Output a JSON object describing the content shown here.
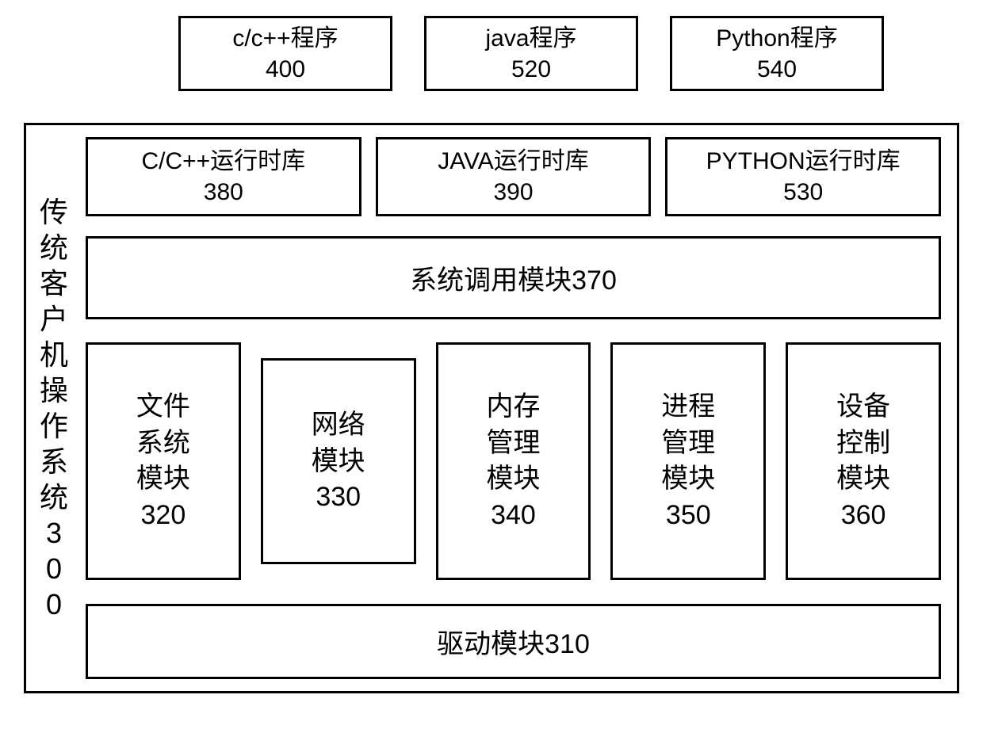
{
  "diagram": {
    "type": "architecture-block-diagram",
    "colors": {
      "border": "#000000",
      "background": "#ffffff",
      "text": "#000000"
    },
    "typography": {
      "font_family": "SimSun / monospace-like CJK",
      "top_box_fontsize": 30,
      "runtime_box_fontsize": 30,
      "syscall_fontsize": 34,
      "module_fontsize": 34,
      "vertical_label_fontsize": 36,
      "border_width": 3
    },
    "top_programs": [
      {
        "name": "c/c++程序",
        "id": "400"
      },
      {
        "name": "java程序",
        "id": "520"
      },
      {
        "name": "Python程序",
        "id": "540"
      }
    ],
    "container_label": {
      "chars": [
        "传",
        "统",
        "客",
        "户",
        "机",
        "操",
        "作",
        "系",
        "统",
        "3",
        "0",
        "0"
      ]
    },
    "runtimes": [
      {
        "name": "C/C++运行时库",
        "id": "380"
      },
      {
        "name": "JAVA运行时库",
        "id": "390"
      },
      {
        "name": "PYTHON运行时库",
        "id": "530"
      }
    ],
    "syscall": {
      "label": "系统调用模块370"
    },
    "modules": [
      {
        "lines": [
          "文件",
          "系统",
          "模块",
          "320"
        ],
        "h": "h-tall"
      },
      {
        "lines": [
          "网络",
          "模块",
          "330"
        ],
        "h": "h-mid"
      },
      {
        "lines": [
          "内存",
          "管理",
          "模块",
          "340"
        ],
        "h": "h-tall"
      },
      {
        "lines": [
          "进程",
          "管理",
          "模块",
          "350"
        ],
        "h": "h-tall"
      },
      {
        "lines": [
          "设备",
          "控制",
          "模块",
          "360"
        ],
        "h": "h-tall"
      }
    ],
    "driver": {
      "label": "驱动模块310"
    }
  }
}
